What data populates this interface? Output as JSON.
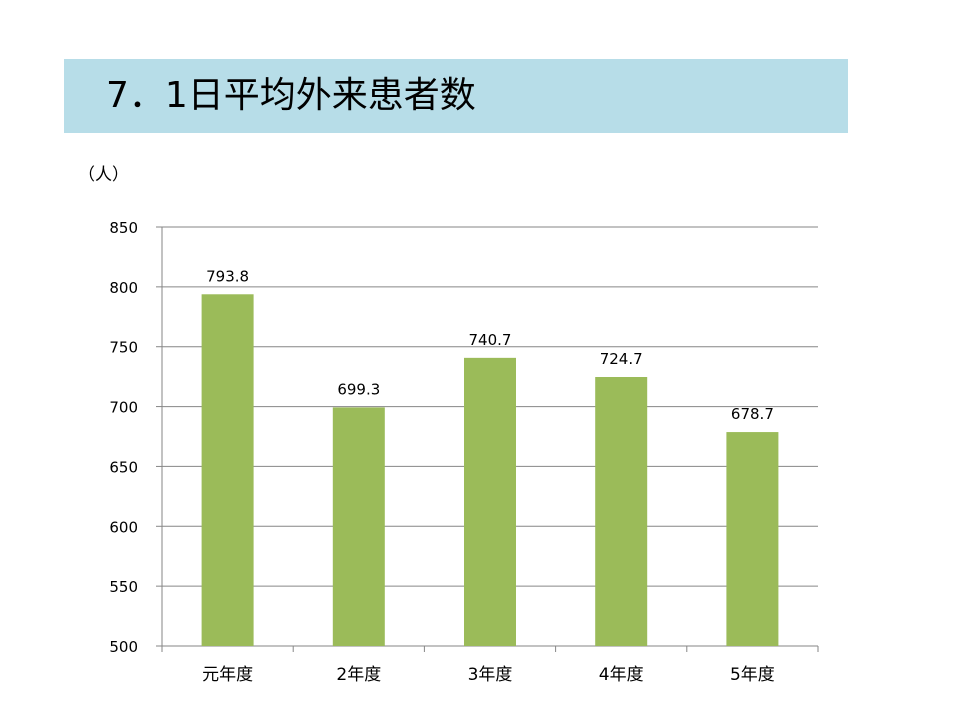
{
  "title": "7．1日平均外来患者数",
  "colors": {
    "title_band": "#b7dde8",
    "bar": "#9bbb59",
    "grid": "#868686"
  },
  "chart_data": {
    "type": "bar",
    "categories": [
      "元年度",
      "2年度",
      "3年度",
      "4年度",
      "5年度"
    ],
    "values": [
      793.8,
      699.3,
      740.7,
      724.7,
      678.7
    ],
    "data_labels": [
      "793.8",
      "699.3",
      "740.7",
      "724.7",
      "678.7"
    ],
    "ylabel": "（人）",
    "ylim": [
      500,
      850
    ],
    "yticks": [
      500,
      550,
      600,
      650,
      700,
      750,
      800,
      850
    ],
    "grid": true,
    "legend": "none"
  }
}
